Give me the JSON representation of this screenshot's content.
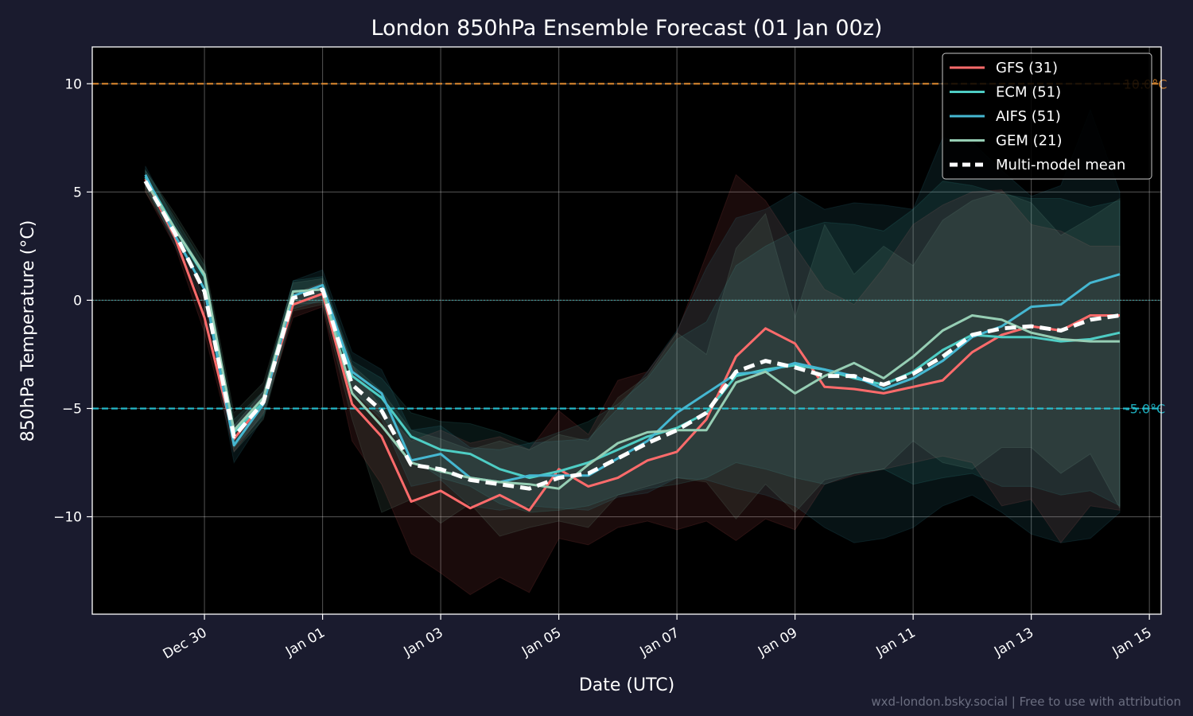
{
  "chart_data": {
    "type": "line",
    "title": "London 850hPa Ensemble Forecast (01 Jan 00z)",
    "xlabel": "Date (UTC)",
    "ylabel": "850hPa Temperature (°C)",
    "x_unit": "days since Dec 29 00z",
    "xlim": [
      -0.9,
      17.2
    ],
    "ylim": [
      -14.5,
      11.7
    ],
    "x_ticks": [
      {
        "x": 1,
        "label": "Dec 30"
      },
      {
        "x": 3,
        "label": "Jan 01"
      },
      {
        "x": 5,
        "label": "Jan 03"
      },
      {
        "x": 7,
        "label": "Jan 05"
      },
      {
        "x": 9,
        "label": "Jan 07"
      },
      {
        "x": 11,
        "label": "Jan 09"
      },
      {
        "x": 13,
        "label": "Jan 11"
      },
      {
        "x": 15,
        "label": "Jan 13"
      },
      {
        "x": 17,
        "label": "Jan 15"
      }
    ],
    "y_ticks": [
      {
        "y": 10,
        "label": "10"
      },
      {
        "y": 5,
        "label": "5"
      },
      {
        "y": 0,
        "label": "0"
      },
      {
        "y": -5,
        "label": "−5"
      },
      {
        "y": -10,
        "label": "−10"
      }
    ],
    "grid": true,
    "legend_position": "top-right",
    "x": [
      0,
      0.5,
      1,
      1.5,
      2,
      2.5,
      3,
      3.5,
      4,
      4.5,
      5,
      5.5,
      6,
      6.5,
      7,
      7.5,
      8,
      8.5,
      9,
      9.5,
      10,
      10.5,
      11,
      11.5,
      12,
      12.5,
      13,
      13.5,
      14,
      14.5,
      15,
      15.5,
      16,
      16.5
    ],
    "series": [
      {
        "name": "GFS (31)",
        "color": "#ff6b6b",
        "values": [
          5.6,
          2.9,
          -0.8,
          -6.4,
          -4.7,
          -0.2,
          0.3,
          -4.8,
          -6.3,
          -9.3,
          -8.8,
          -9.6,
          -9.0,
          -9.7,
          -7.8,
          -8.6,
          -8.2,
          -7.4,
          -7.0,
          -5.5,
          -2.6,
          -1.3,
          -2.0,
          -4.0,
          -4.1,
          -4.3,
          -4.0,
          -3.7,
          -2.4,
          -1.6,
          -1.2,
          -1.4,
          -0.7,
          -0.7
        ],
        "band": [
          [
            5.0,
            5.5
          ],
          [
            2.5,
            3.3
          ],
          [
            -1.5,
            0.0
          ],
          [
            -7.0,
            -5.8
          ],
          [
            -5.2,
            -4.2
          ],
          [
            -0.8,
            0.3
          ],
          [
            -0.3,
            0.8
          ],
          [
            -6.5,
            -3.0
          ],
          [
            -8.5,
            -5.0
          ],
          [
            -11.7,
            -6.5
          ],
          [
            -12.6,
            -6.0
          ],
          [
            -13.6,
            -6.6
          ],
          [
            -12.8,
            -6.3
          ],
          [
            -13.5,
            -6.9
          ],
          [
            -11.0,
            -5.1
          ],
          [
            -11.3,
            -6.2
          ],
          [
            -10.5,
            -3.7
          ],
          [
            -10.2,
            -3.3
          ],
          [
            -10.6,
            -1.5
          ],
          [
            -10.2,
            2.1
          ],
          [
            -11.1,
            5.8
          ],
          [
            -10.1,
            4.6
          ],
          [
            -10.6,
            2.5
          ],
          [
            -8.5,
            0.5
          ],
          [
            -8.1,
            -0.2
          ],
          [
            -7.8,
            1.5
          ],
          [
            -7.5,
            3.5
          ],
          [
            -7.2,
            4.4
          ],
          [
            -7.5,
            5.0
          ],
          [
            -9.5,
            5.1
          ],
          [
            -9.2,
            3.5
          ],
          [
            -11.2,
            3.2
          ],
          [
            -9.5,
            2.5
          ],
          [
            -9.7,
            2.5
          ]
        ]
      },
      {
        "name": "ECM (51)",
        "color": "#4ecdc4",
        "values": [
          5.7,
          3.3,
          1.1,
          -6.1,
          -4.7,
          0.4,
          0.5,
          -3.5,
          -4.5,
          -6.3,
          -6.9,
          -7.1,
          -7.8,
          -8.2,
          -7.9,
          -7.5,
          -6.9,
          -6.3,
          -5.9,
          -5.2,
          -3.5,
          -3.2,
          -3.0,
          -3.2,
          -3.6,
          -3.9,
          -3.3,
          -2.3,
          -1.6,
          -1.7,
          -1.7,
          -1.9,
          -1.8,
          -1.5
        ],
        "band": [
          [
            5.2,
            6.0
          ],
          [
            2.8,
            3.8
          ],
          [
            0.5,
            1.6
          ],
          [
            -6.8,
            -5.5
          ],
          [
            -5.3,
            -4.2
          ],
          [
            -0.2,
            0.9
          ],
          [
            -0.1,
            1.1
          ],
          [
            -4.2,
            -2.8
          ],
          [
            -5.3,
            -3.6
          ],
          [
            -7.3,
            -5.2
          ],
          [
            -8.2,
            -5.6
          ],
          [
            -8.6,
            -5.7
          ],
          [
            -9.4,
            -6.1
          ],
          [
            -9.8,
            -6.6
          ],
          [
            -9.7,
            -6.1
          ],
          [
            -9.5,
            -5.6
          ],
          [
            -9.0,
            -4.8
          ],
          [
            -8.7,
            -3.6
          ],
          [
            -8.5,
            -1.8
          ],
          [
            -8.2,
            -1.0
          ],
          [
            -7.5,
            1.6
          ],
          [
            -7.8,
            2.5
          ],
          [
            -8.2,
            3.2
          ],
          [
            -8.5,
            3.6
          ],
          [
            -8.0,
            3.5
          ],
          [
            -7.8,
            3.2
          ],
          [
            -8.5,
            4.2
          ],
          [
            -8.2,
            5.5
          ],
          [
            -8.0,
            5.3
          ],
          [
            -8.6,
            4.9
          ],
          [
            -8.6,
            4.7
          ],
          [
            -9.0,
            4.7
          ],
          [
            -8.8,
            4.3
          ],
          [
            -9.5,
            4.6
          ]
        ]
      },
      {
        "name": "AIFS (51)",
        "color": "#45b7d1",
        "values": [
          5.8,
          3.0,
          0.5,
          -6.7,
          -4.8,
          0.2,
          0.7,
          -3.3,
          -4.3,
          -7.4,
          -7.1,
          -8.2,
          -8.4,
          -8.1,
          -8.1,
          -8.1,
          -7.3,
          -6.5,
          -5.2,
          -4.3,
          -3.4,
          -3.3,
          -2.9,
          -3.2,
          -3.5,
          -4.1,
          -3.6,
          -2.8,
          -1.7,
          -1.2,
          -0.3,
          -0.2,
          0.8,
          1.2
        ],
        "band": [
          [
            5.4,
            6.2
          ],
          [
            2.5,
            3.6
          ],
          [
            -0.2,
            1.2
          ],
          [
            -7.5,
            -5.8
          ],
          [
            -5.4,
            -4.2
          ],
          [
            -0.4,
            0.9
          ],
          [
            0.0,
            1.4
          ],
          [
            -4.2,
            -2.4
          ],
          [
            -5.5,
            -3.2
          ],
          [
            -8.6,
            -6.0
          ],
          [
            -8.3,
            -5.8
          ],
          [
            -9.5,
            -6.8
          ],
          [
            -9.7,
            -6.9
          ],
          [
            -9.5,
            -6.6
          ],
          [
            -9.6,
            -6.5
          ],
          [
            -9.7,
            -6.4
          ],
          [
            -9.1,
            -5.0
          ],
          [
            -8.9,
            -3.3
          ],
          [
            -8.2,
            -1.4
          ],
          [
            -8.3,
            1.5
          ],
          [
            -8.7,
            3.8
          ],
          [
            -9.0,
            4.2
          ],
          [
            -9.5,
            5.0
          ],
          [
            -10.5,
            4.2
          ],
          [
            -11.2,
            4.5
          ],
          [
            -11.0,
            4.4
          ],
          [
            -10.5,
            4.2
          ],
          [
            -9.5,
            7.5
          ],
          [
            -9.0,
            7.3
          ],
          [
            -9.8,
            6.0
          ],
          [
            -10.8,
            4.8
          ],
          [
            -11.2,
            5.3
          ],
          [
            -11.0,
            8.8
          ],
          [
            -9.8,
            5.0
          ]
        ]
      },
      {
        "name": "GEM (21)",
        "color": "#96ceb4",
        "values": [
          5.5,
          3.3,
          1.2,
          -6.0,
          -4.5,
          0.4,
          0.5,
          -4.3,
          -5.8,
          -7.5,
          -7.9,
          -8.2,
          -8.4,
          -8.5,
          -8.7,
          -7.6,
          -6.6,
          -6.1,
          -6.0,
          -6.0,
          -3.8,
          -3.3,
          -4.3,
          -3.5,
          -2.9,
          -3.6,
          -2.6,
          -1.4,
          -0.7,
          -0.9,
          -1.5,
          -1.8,
          -1.9,
          -1.9
        ],
        "band": [
          [
            5.0,
            6.0
          ],
          [
            2.8,
            4.0
          ],
          [
            0.6,
            1.8
          ],
          [
            -7.0,
            -5.2
          ],
          [
            -5.5,
            -3.8
          ],
          [
            -0.5,
            0.8
          ],
          [
            -0.2,
            1.0
          ],
          [
            -5.5,
            -3.0
          ],
          [
            -9.8,
            -4.2
          ],
          [
            -9.2,
            -6.0
          ],
          [
            -10.3,
            -6.4
          ],
          [
            -9.4,
            -6.9
          ],
          [
            -10.9,
            -6.5
          ],
          [
            -10.5,
            -6.9
          ],
          [
            -10.2,
            -6.2
          ],
          [
            -10.5,
            -6.5
          ],
          [
            -9.0,
            -4.5
          ],
          [
            -8.6,
            -3.5
          ],
          [
            -8.2,
            -1.5
          ],
          [
            -8.4,
            -2.5
          ],
          [
            -10.1,
            2.4
          ],
          [
            -8.5,
            4.0
          ],
          [
            -9.8,
            -0.8
          ],
          [
            -8.3,
            3.5
          ],
          [
            -8.0,
            1.2
          ],
          [
            -7.8,
            2.5
          ],
          [
            -6.5,
            1.6
          ],
          [
            -7.5,
            3.7
          ],
          [
            -7.8,
            4.6
          ],
          [
            -6.8,
            5.0
          ],
          [
            -6.8,
            4.5
          ],
          [
            -8.0,
            3.0
          ],
          [
            -7.1,
            3.8
          ],
          [
            -9.6,
            4.7
          ]
        ]
      },
      {
        "name": "Multi-model mean",
        "color": "#ffffff",
        "dashed": true,
        "values": [
          5.5,
          3.1,
          0.4,
          -6.3,
          -4.7,
          0.1,
          0.5,
          -3.9,
          -5.1,
          -7.6,
          -7.8,
          -8.3,
          -8.5,
          -8.7,
          -8.2,
          -8.0,
          -7.3,
          -6.6,
          -6.0,
          -5.2,
          -3.3,
          -2.8,
          -3.1,
          -3.5,
          -3.5,
          -3.9,
          -3.4,
          -2.6,
          -1.6,
          -1.3,
          -1.2,
          -1.4,
          -0.9,
          -0.7
        ]
      }
    ],
    "reference_lines": [
      {
        "y": 10,
        "label": "10.0°C",
        "color": "#e08a2e",
        "style": "dashed"
      },
      {
        "y": -5,
        "label": "-5.0°C",
        "color": "#22c7d8",
        "style": "dashed"
      },
      {
        "y": 0,
        "label": "",
        "color": "#3fb8b8",
        "style": "dotted"
      }
    ]
  },
  "footer": {
    "attribution": "wxd-london.bsky.social | Free to use with attribution"
  }
}
